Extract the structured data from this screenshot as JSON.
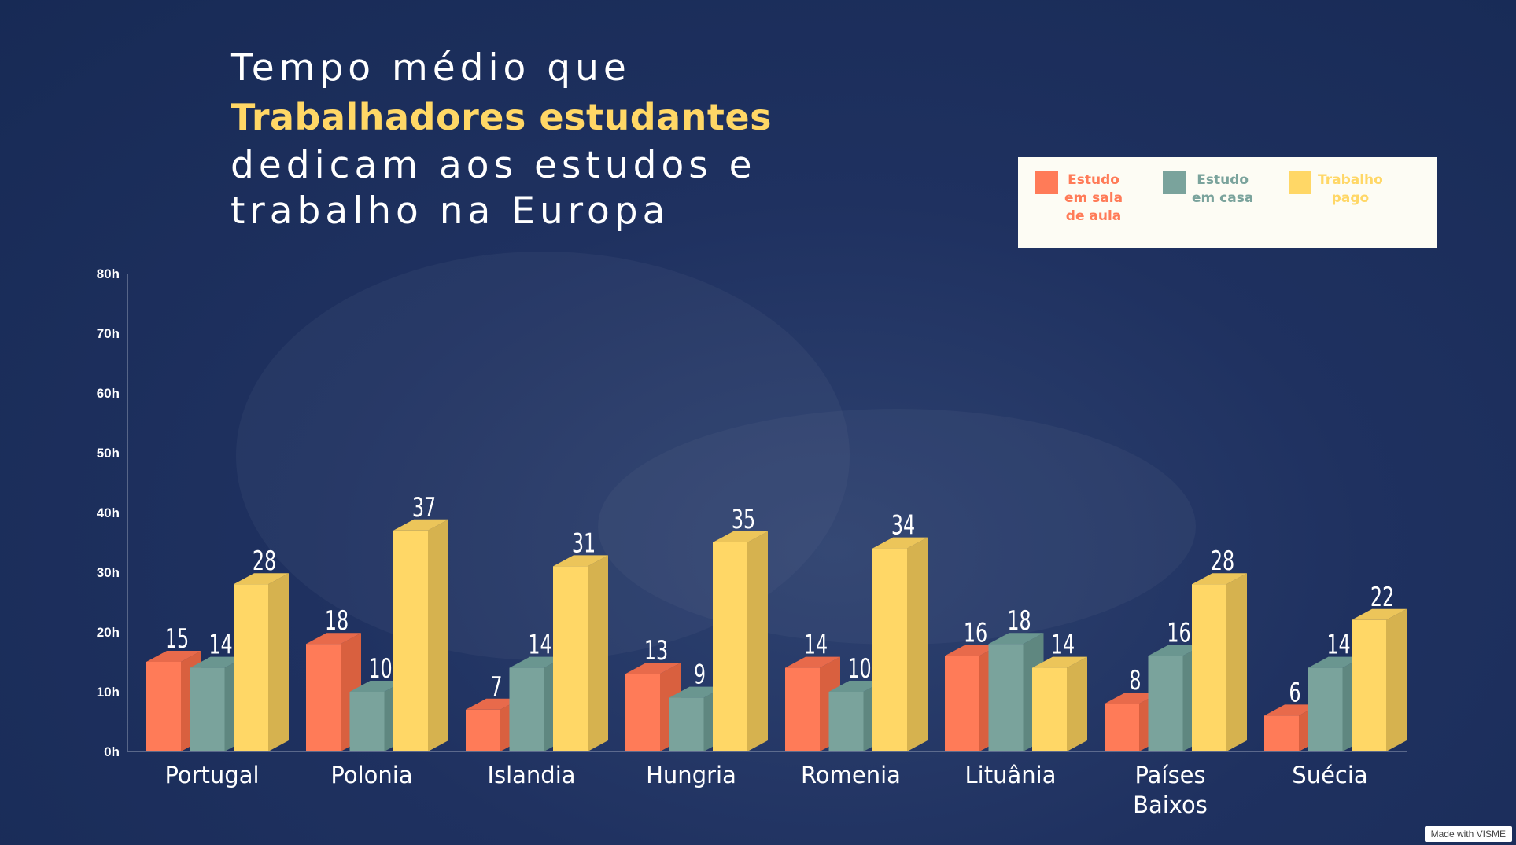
{
  "title": {
    "line1": "Tempo médio que",
    "line2": "Trabalhadores estudantes",
    "line3": "dedicam aos estudos e",
    "line4": "trabalho na Europa"
  },
  "legend": [
    {
      "lines": [
        "Estudo",
        "em sala",
        "de aula"
      ],
      "color": "#ff7b58"
    },
    {
      "lines": [
        "Estudo",
        "em casa"
      ],
      "color": "#7aa39c"
    },
    {
      "lines": [
        "Trabalho",
        "pago"
      ],
      "color": "#ffd766"
    }
  ],
  "watermark": "Made with VISME",
  "chart_data": {
    "type": "bar",
    "categories": [
      [
        "Portugal"
      ],
      [
        "Polonia"
      ],
      [
        "Islandia"
      ],
      [
        "Hungria"
      ],
      [
        "Romenia"
      ],
      [
        "Lituânia"
      ],
      [
        "Países",
        "Baixos"
      ],
      [
        "Suécia"
      ]
    ],
    "series": [
      {
        "name": "Estudo em sala de aula",
        "color": "#ff7b58",
        "side": "#d9603f",
        "top": "#e86a4b",
        "values": [
          15,
          18,
          7,
          13,
          14,
          16,
          8,
          6
        ]
      },
      {
        "name": "Estudo em casa",
        "color": "#7aa39c",
        "side": "#5f8780",
        "top": "#6a9690",
        "values": [
          14,
          10,
          14,
          9,
          10,
          18,
          16,
          14
        ]
      },
      {
        "name": "Trabalho pago",
        "color": "#ffd766",
        "side": "#d6b24f",
        "top": "#ecc55a",
        "values": [
          28,
          37,
          31,
          35,
          34,
          14,
          28,
          22
        ]
      }
    ],
    "ylim": [
      0,
      80
    ],
    "yticks": [
      "0h",
      "10h",
      "20h",
      "30h",
      "40h",
      "50h",
      "60h",
      "70h",
      "80h"
    ],
    "grid": false
  }
}
